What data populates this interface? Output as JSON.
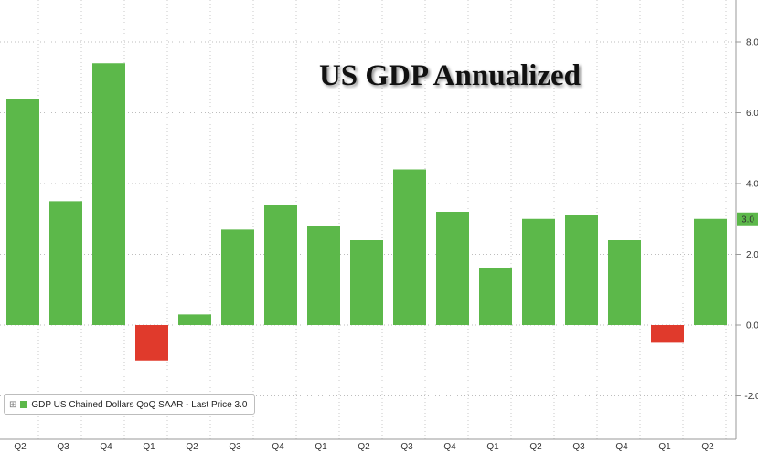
{
  "chart_data": {
    "type": "bar",
    "title": "US GDP Annualized",
    "categories": [
      "Q2",
      "Q3",
      "Q4",
      "Q1",
      "Q2",
      "Q3",
      "Q4",
      "Q1",
      "Q2",
      "Q3",
      "Q4",
      "Q1",
      "Q2",
      "Q3",
      "Q4",
      "Q1",
      "Q2"
    ],
    "values": [
      6.4,
      3.5,
      7.4,
      -1.0,
      0.3,
      2.7,
      3.4,
      2.8,
      2.4,
      4.4,
      3.2,
      1.6,
      3.0,
      3.1,
      2.4,
      -0.5,
      3.0
    ],
    "xlabel": "",
    "ylabel": "",
    "ylim": [
      -3.0,
      9.0
    ],
    "yticks": [
      -2.0,
      0.0,
      2.0,
      4.0,
      6.0,
      8.0
    ],
    "ytick_labels": [
      "-2.0",
      "0.0",
      "2.0",
      "4.0",
      "6.0",
      "8.0"
    ],
    "last_price_label": "3.0",
    "grid": true,
    "y_axis_side": "right",
    "positive_color": "#5cb84a",
    "negative_color": "#e03a2c",
    "legend": {
      "position": "bottom-left",
      "label": "GDP US Chained Dollars QoQ SAAR - Last Price 3.0"
    }
  }
}
